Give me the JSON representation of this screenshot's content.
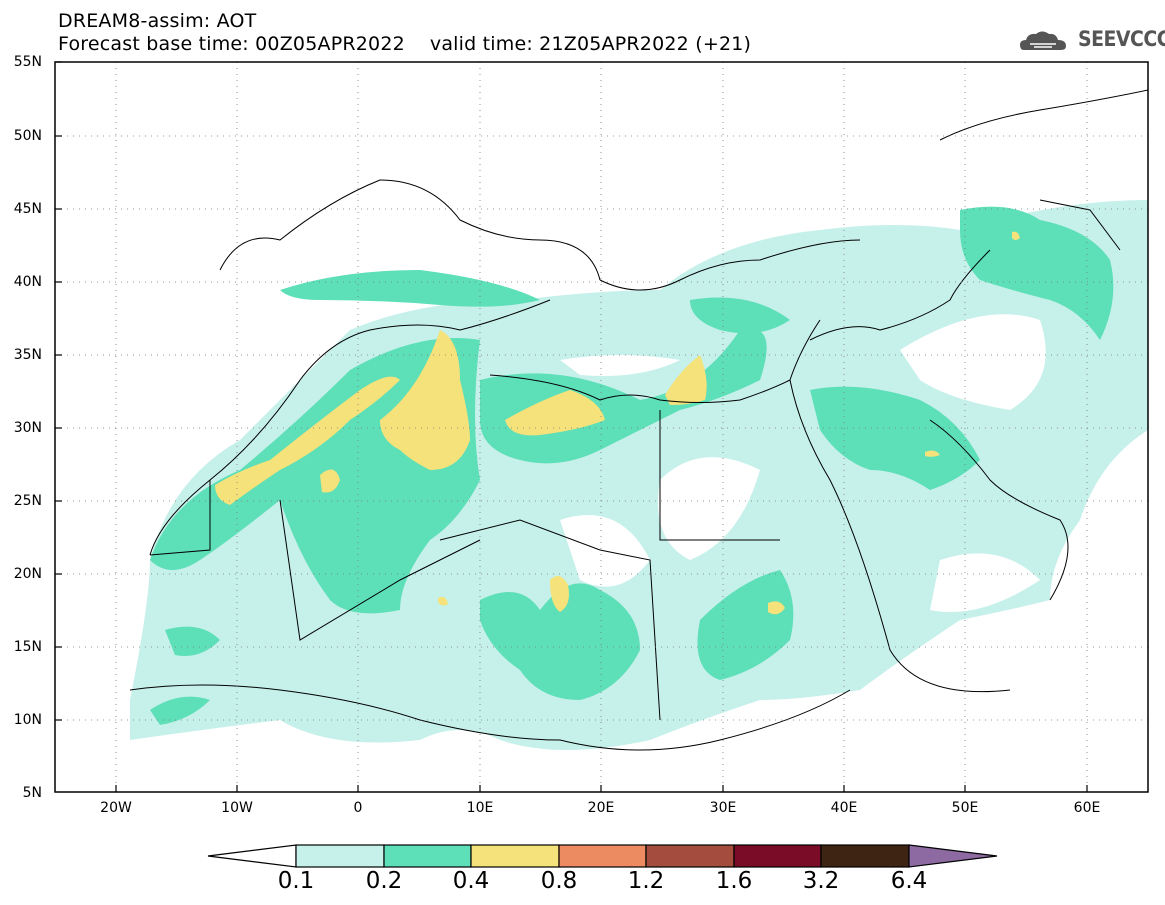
{
  "title": {
    "line1": "DREAM8-assim: AOT",
    "line2": "Forecast base time: 00Z05APR2022    valid time: 21Z05APR2022 (+21)"
  },
  "logo": {
    "text": "SEEVCCC",
    "icon": "cloud-logo-icon"
  },
  "map": {
    "lat_range": [
      5,
      55
    ],
    "lon_range": [
      -25,
      65
    ],
    "grid": "dotted",
    "lat_ticks": [
      "55N",
      "50N",
      "45N",
      "40N",
      "35N",
      "30N",
      "25N",
      "20N",
      "15N",
      "10N",
      "5N"
    ],
    "lon_ticks": [
      "20W",
      "10W",
      "0",
      "10E",
      "20E",
      "30E",
      "40E",
      "50E",
      "60E"
    ],
    "variable": "AOT",
    "dust_regions": [
      {
        "level": "0.1-0.2",
        "description": "broad light plume over Sahara, Mediterranean, Middle East"
      },
      {
        "level": "0.2-0.4",
        "description": "moderate plume along northwest Africa to Arabia"
      },
      {
        "level": "0.4-0.8",
        "description": "highest values over Algeria, Libya coast, Egypt coast, Western Sahara"
      }
    ]
  },
  "colorbar": {
    "labels": [
      "0.1",
      "0.2",
      "0.4",
      "0.8",
      "1.2",
      "1.6",
      "3.2",
      "6.4"
    ],
    "colors": [
      "#c6f0ea",
      "#5ddfb8",
      "#f5e27a",
      "#ec8b62",
      "#a44d3e",
      "#7a0c27",
      "#3d2413",
      "#8e6aa3"
    ]
  }
}
